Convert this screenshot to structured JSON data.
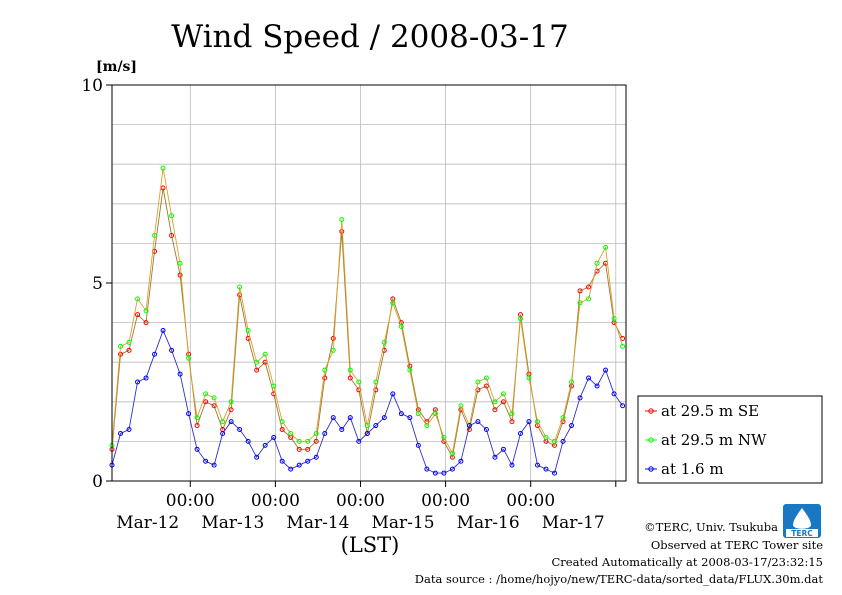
{
  "chart_data": {
    "type": "line",
    "title": "Wind Speed / 2008-03-17",
    "ylabel": "[m/s]",
    "xlabel": "(LST)",
    "ylim": [
      0,
      10
    ],
    "yticks": [
      "0",
      "5",
      "10"
    ],
    "x_time_labels": [
      "00:00",
      "00:00",
      "00:00",
      "00:00",
      "00:00"
    ],
    "x_date_labels": [
      "Mar-12",
      "Mar-13",
      "Mar-14",
      "Mar-15",
      "Mar-16",
      "Mar-17"
    ],
    "x_range_days": [
      -0.92,
      5.12
    ],
    "grid": true,
    "legend_placement": "right",
    "series": [
      {
        "name": "at 29.5 m SE",
        "color": "#ff0000",
        "points": [
          [
            -0.92,
            0.8
          ],
          [
            -0.82,
            3.2
          ],
          [
            -0.72,
            3.3
          ],
          [
            -0.62,
            4.2
          ],
          [
            -0.52,
            4.0
          ],
          [
            -0.42,
            5.8
          ],
          [
            -0.32,
            7.4
          ],
          [
            -0.22,
            6.2
          ],
          [
            -0.12,
            5.2
          ],
          [
            -0.02,
            3.2
          ],
          [
            0.08,
            1.4
          ],
          [
            0.18,
            2.0
          ],
          [
            0.28,
            1.9
          ],
          [
            0.38,
            1.3
          ],
          [
            0.48,
            1.8
          ],
          [
            0.58,
            4.7
          ],
          [
            0.68,
            3.6
          ],
          [
            0.78,
            2.8
          ],
          [
            0.88,
            3.0
          ],
          [
            0.98,
            2.2
          ],
          [
            1.08,
            1.3
          ],
          [
            1.18,
            1.1
          ],
          [
            1.28,
            0.8
          ],
          [
            1.38,
            0.8
          ],
          [
            1.48,
            1.0
          ],
          [
            1.58,
            2.6
          ],
          [
            1.68,
            3.6
          ],
          [
            1.78,
            6.3
          ],
          [
            1.88,
            2.6
          ],
          [
            1.98,
            2.3
          ],
          [
            2.08,
            1.2
          ],
          [
            2.18,
            2.3
          ],
          [
            2.28,
            3.3
          ],
          [
            2.38,
            4.6
          ],
          [
            2.48,
            4.0
          ],
          [
            2.58,
            2.9
          ],
          [
            2.68,
            1.8
          ],
          [
            2.78,
            1.5
          ],
          [
            2.88,
            1.8
          ],
          [
            2.98,
            1.0
          ],
          [
            3.08,
            0.6
          ],
          [
            3.18,
            1.8
          ],
          [
            3.28,
            1.3
          ],
          [
            3.38,
            2.3
          ],
          [
            3.48,
            2.4
          ],
          [
            3.58,
            1.8
          ],
          [
            3.68,
            2.0
          ],
          [
            3.78,
            1.5
          ],
          [
            3.88,
            4.2
          ],
          [
            3.98,
            2.7
          ],
          [
            4.08,
            1.4
          ],
          [
            4.18,
            1.0
          ],
          [
            4.28,
            0.9
          ],
          [
            4.38,
            1.5
          ],
          [
            4.48,
            2.4
          ],
          [
            4.58,
            4.8
          ],
          [
            4.68,
            4.9
          ],
          [
            4.78,
            5.3
          ],
          [
            4.88,
            5.5
          ],
          [
            4.98,
            4.0
          ],
          [
            5.08,
            3.6
          ]
        ]
      },
      {
        "name": "at 29.5 m NW",
        "color": "#00ff00",
        "points": [
          [
            -0.92,
            0.9
          ],
          [
            -0.82,
            3.4
          ],
          [
            -0.72,
            3.5
          ],
          [
            -0.62,
            4.6
          ],
          [
            -0.52,
            4.3
          ],
          [
            -0.42,
            6.2
          ],
          [
            -0.32,
            7.9
          ],
          [
            -0.22,
            6.7
          ],
          [
            -0.12,
            5.5
          ],
          [
            -0.02,
            3.1
          ],
          [
            0.08,
            1.6
          ],
          [
            0.18,
            2.2
          ],
          [
            0.28,
            2.1
          ],
          [
            0.38,
            1.5
          ],
          [
            0.48,
            2.0
          ],
          [
            0.58,
            4.9
          ],
          [
            0.68,
            3.8
          ],
          [
            0.78,
            3.0
          ],
          [
            0.88,
            3.2
          ],
          [
            0.98,
            2.4
          ],
          [
            1.08,
            1.5
          ],
          [
            1.18,
            1.2
          ],
          [
            1.28,
            1.0
          ],
          [
            1.38,
            1.0
          ],
          [
            1.48,
            1.2
          ],
          [
            1.58,
            2.8
          ],
          [
            1.68,
            3.3
          ],
          [
            1.78,
            6.6
          ],
          [
            1.88,
            2.8
          ],
          [
            1.98,
            2.5
          ],
          [
            2.08,
            1.4
          ],
          [
            2.18,
            2.5
          ],
          [
            2.28,
            3.5
          ],
          [
            2.38,
            4.5
          ],
          [
            2.48,
            3.9
          ],
          [
            2.58,
            2.8
          ],
          [
            2.68,
            1.7
          ],
          [
            2.78,
            1.4
          ],
          [
            2.88,
            1.7
          ],
          [
            2.98,
            1.1
          ],
          [
            3.08,
            0.7
          ],
          [
            3.18,
            1.9
          ],
          [
            3.28,
            1.4
          ],
          [
            3.38,
            2.5
          ],
          [
            3.48,
            2.6
          ],
          [
            3.58,
            2.0
          ],
          [
            3.68,
            2.2
          ],
          [
            3.78,
            1.7
          ],
          [
            3.88,
            4.1
          ],
          [
            3.98,
            2.6
          ],
          [
            4.08,
            1.5
          ],
          [
            4.18,
            1.1
          ],
          [
            4.28,
            1.0
          ],
          [
            4.38,
            1.6
          ],
          [
            4.48,
            2.5
          ],
          [
            4.58,
            4.5
          ],
          [
            4.68,
            4.6
          ],
          [
            4.78,
            5.5
          ],
          [
            4.88,
            5.9
          ],
          [
            4.98,
            4.1
          ],
          [
            5.08,
            3.4
          ]
        ]
      },
      {
        "name": "at 1.6 m",
        "color": "#0000ff",
        "points": [
          [
            -0.92,
            0.4
          ],
          [
            -0.82,
            1.2
          ],
          [
            -0.72,
            1.3
          ],
          [
            -0.62,
            2.5
          ],
          [
            -0.52,
            2.6
          ],
          [
            -0.42,
            3.2
          ],
          [
            -0.32,
            3.8
          ],
          [
            -0.22,
            3.3
          ],
          [
            -0.12,
            2.7
          ],
          [
            -0.02,
            1.7
          ],
          [
            0.08,
            0.8
          ],
          [
            0.18,
            0.5
          ],
          [
            0.28,
            0.4
          ],
          [
            0.38,
            1.2
          ],
          [
            0.48,
            1.5
          ],
          [
            0.58,
            1.3
          ],
          [
            0.68,
            1.0
          ],
          [
            0.78,
            0.6
          ],
          [
            0.88,
            0.9
          ],
          [
            0.98,
            1.1
          ],
          [
            1.08,
            0.5
          ],
          [
            1.18,
            0.3
          ],
          [
            1.28,
            0.4
          ],
          [
            1.38,
            0.5
          ],
          [
            1.48,
            0.6
          ],
          [
            1.58,
            1.2
          ],
          [
            1.68,
            1.6
          ],
          [
            1.78,
            1.3
          ],
          [
            1.88,
            1.6
          ],
          [
            1.98,
            1.0
          ],
          [
            2.08,
            1.2
          ],
          [
            2.18,
            1.4
          ],
          [
            2.28,
            1.6
          ],
          [
            2.38,
            2.2
          ],
          [
            2.48,
            1.7
          ],
          [
            2.58,
            1.6
          ],
          [
            2.68,
            0.9
          ],
          [
            2.78,
            0.3
          ],
          [
            2.88,
            0.2
          ],
          [
            2.98,
            0.2
          ],
          [
            3.08,
            0.3
          ],
          [
            3.18,
            0.5
          ],
          [
            3.28,
            1.4
          ],
          [
            3.38,
            1.5
          ],
          [
            3.48,
            1.3
          ],
          [
            3.58,
            0.6
          ],
          [
            3.68,
            0.8
          ],
          [
            3.78,
            0.4
          ],
          [
            3.88,
            1.2
          ],
          [
            3.98,
            1.5
          ],
          [
            4.08,
            0.4
          ],
          [
            4.18,
            0.3
          ],
          [
            4.28,
            0.2
          ],
          [
            4.38,
            1.0
          ],
          [
            4.48,
            1.4
          ],
          [
            4.58,
            2.1
          ],
          [
            4.68,
            2.6
          ],
          [
            4.78,
            2.4
          ],
          [
            4.88,
            2.8
          ],
          [
            4.98,
            2.2
          ],
          [
            5.08,
            1.9
          ]
        ]
      }
    ]
  },
  "footer": {
    "line1": "©TERC, Univ. Tsukuba",
    "line2": "Observed at TERC Tower site",
    "line3": "Created Automatically at 2008-03-17/23:32:15",
    "line4": "Data source : /home/hojyo/new/TERC-data/sorted_data/FLUX.30m.dat"
  },
  "logo": {
    "text": "TERC",
    "color": "#1a78c2"
  }
}
